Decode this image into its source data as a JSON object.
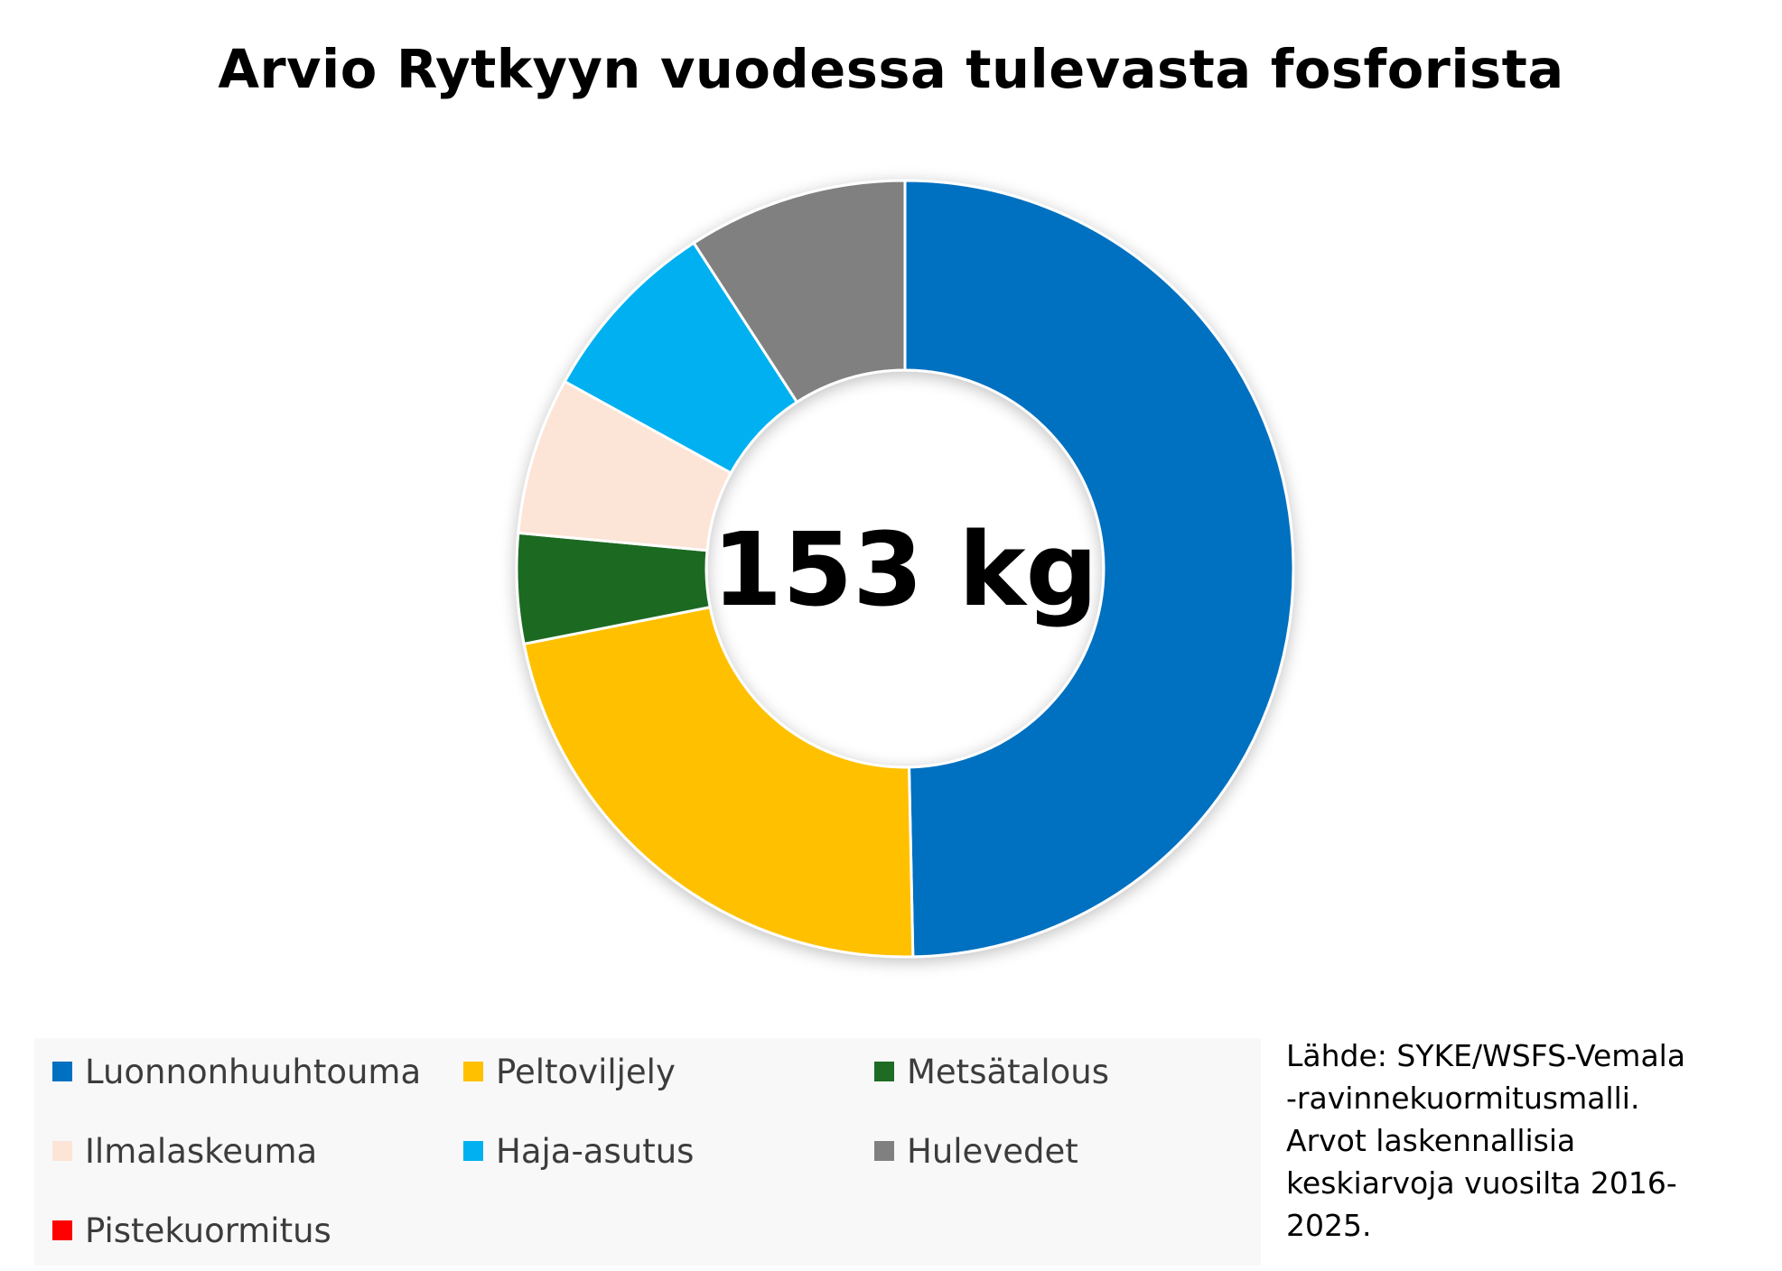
{
  "chart_data": {
    "type": "pie",
    "variant": "donut",
    "title": "Arvio Rytkyyn vuodessa tulevasta fosforista",
    "center_label": "153 kg",
    "total": 153,
    "unit": "kg",
    "series": [
      {
        "name": "Luonnonhuuhtouma",
        "value": 76,
        "color": "#0070C0"
      },
      {
        "name": "Peltoviljely",
        "value": 34,
        "color": "#FFC000"
      },
      {
        "name": "Metsätalous",
        "value": 7,
        "color": "#1E6B24"
      },
      {
        "name": "Ilmalaskeuma",
        "value": 10,
        "color": "#FCE4D6"
      },
      {
        "name": "Haja-asutus",
        "value": 12,
        "color": "#00B0F0"
      },
      {
        "name": "Hulevedet",
        "value": 14,
        "color": "#808080"
      },
      {
        "name": "Pistekuormitus",
        "value": 0,
        "color": "#FF0000"
      }
    ],
    "legend_position": "bottom"
  },
  "source_note": [
    "Lähde: SYKE/WSFS-Vemala",
    "-ravinnekuormitusmalli.",
    "Arvot laskennallisia",
    "keskiarvoja vuosilta 2016-",
    "2025."
  ]
}
